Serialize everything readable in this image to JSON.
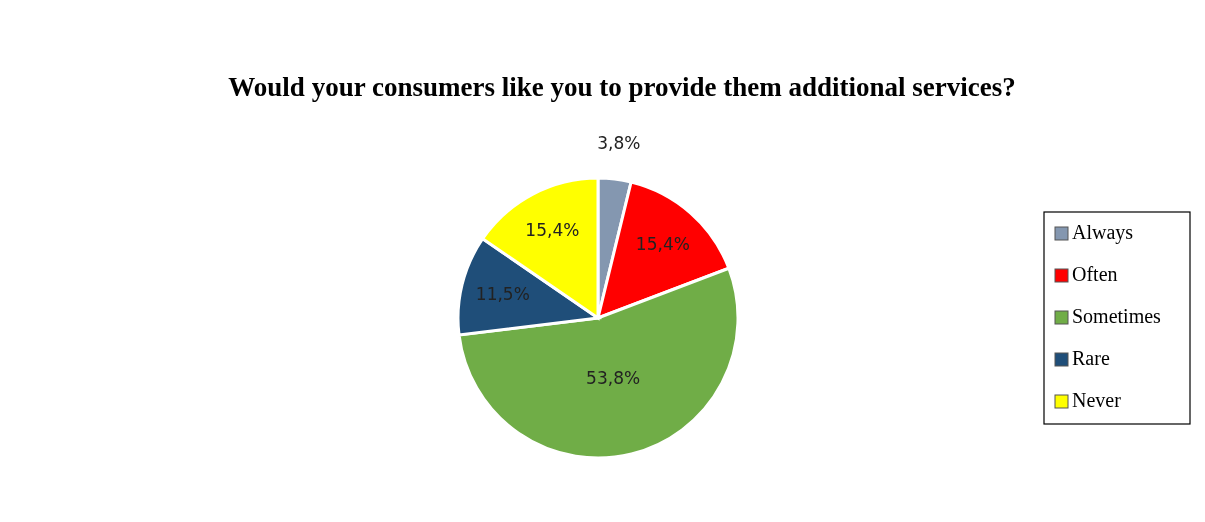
{
  "chart_data": {
    "type": "pie",
    "title": "Would your consumers like you to provide them additional services?",
    "categories": [
      "Always",
      "Often",
      "Sometimes",
      "Rare",
      "Never"
    ],
    "values": [
      3.8,
      15.4,
      53.8,
      11.5,
      15.4
    ],
    "value_labels": [
      "3,8%",
      "15,4%",
      "53,8%",
      "11,5%",
      "15,4%"
    ],
    "colors": [
      "#8497b0",
      "#ff0000",
      "#70ad47",
      "#1f4e79",
      "#ffff00"
    ],
    "legend": "right"
  }
}
